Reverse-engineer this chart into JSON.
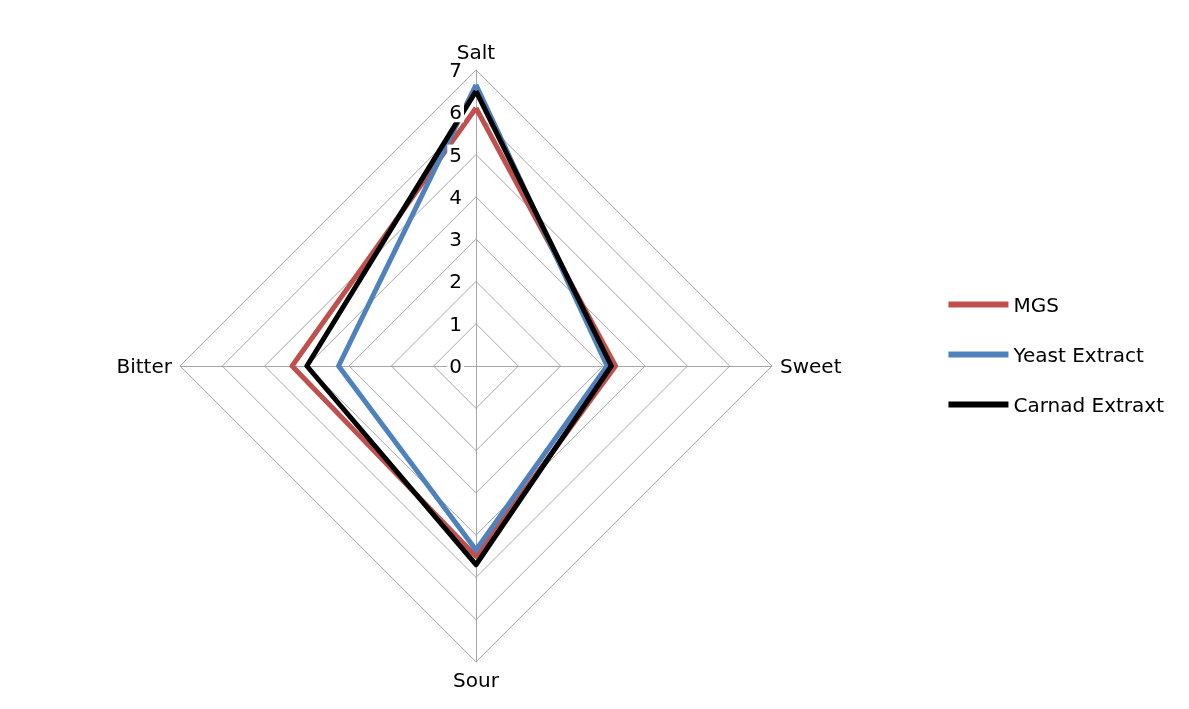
{
  "chart_data": {
    "type": "radar",
    "categories": [
      "Salt",
      "Sweet",
      "Sour",
      "Bitter"
    ],
    "series": [
      {
        "name": "MGS",
        "color": "#c0504d",
        "values": [
          6.1,
          3.3,
          4.5,
          4.35
        ]
      },
      {
        "name": "Yeast Extract",
        "color": "#4f81bd",
        "values": [
          6.65,
          3.1,
          4.35,
          3.25
        ]
      },
      {
        "name": "Carnad Extraxt",
        "color": "#000000",
        "values": [
          6.5,
          3.2,
          4.7,
          4.0
        ]
      }
    ],
    "ylim": [
      0,
      7
    ],
    "yticks": [
      0,
      1,
      2,
      3,
      4,
      5,
      6,
      7
    ],
    "legend": "right",
    "marker": "none"
  }
}
